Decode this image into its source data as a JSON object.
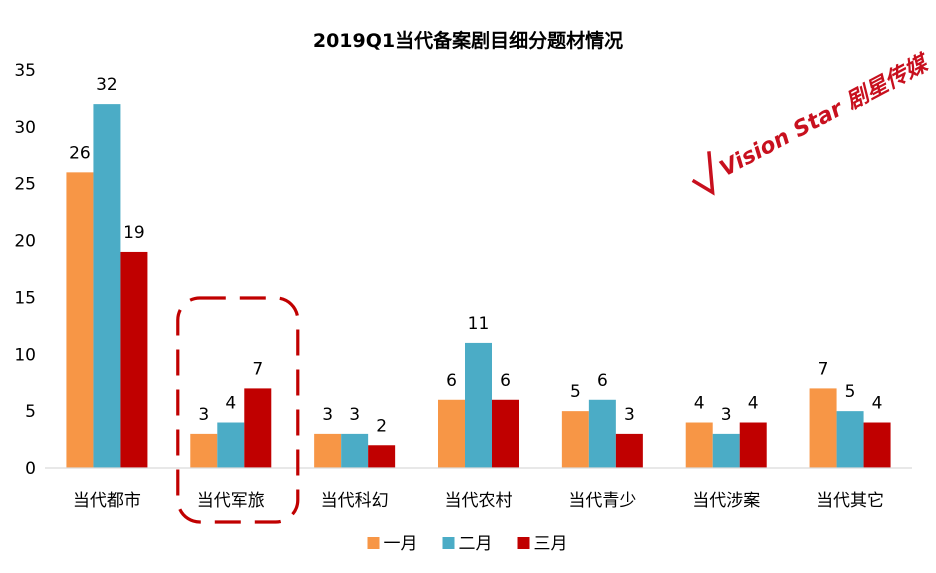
{
  "chart_data": {
    "type": "bar",
    "title": "2019Q1当代备案剧目细分题材情况",
    "categories": [
      "当代都市",
      "当代军旅",
      "当代科幻",
      "当代农村",
      "当代青少",
      "当代涉案",
      "当代其它"
    ],
    "series": [
      {
        "name": "一月",
        "color": "#f79646",
        "values": [
          26,
          3,
          3,
          6,
          5,
          4,
          7
        ]
      },
      {
        "name": "二月",
        "color": "#4bacc6",
        "values": [
          32,
          4,
          3,
          11,
          6,
          3,
          5
        ]
      },
      {
        "name": "三月",
        "color": "#c00000",
        "values": [
          19,
          7,
          2,
          6,
          3,
          4,
          4
        ]
      }
    ],
    "ylim": [
      0,
      35
    ],
    "yticks": [
      0,
      5,
      10,
      15,
      20,
      25,
      30,
      35
    ],
    "grid": false,
    "legend": "bottom",
    "highlight": {
      "category": "当代军旅",
      "style": "dashed",
      "color": "#c00000"
    }
  },
  "watermark": {
    "text": "Vision Star 剧星传媒",
    "color": "#c8101e"
  }
}
